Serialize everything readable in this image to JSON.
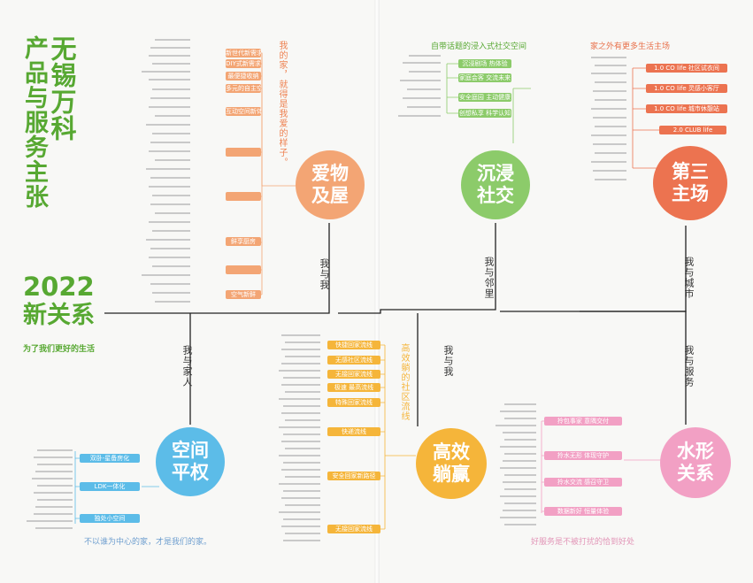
{
  "title": {
    "col1": "无锡万科",
    "col2": "产品与服务主张",
    "year": "2022",
    "subtitle": "新关系",
    "tagline": "为了我们更好的生活"
  },
  "branches": {
    "me_me_top": "我与我",
    "me_neighbors": "我与邻里",
    "me_city": "我与城市",
    "me_family": "我与家人",
    "me_me_bottom": "我与我",
    "me_service": "我与服务"
  },
  "circles": {
    "aiwu": "爱物\n及屋",
    "chenjin": "沉浸\n社交",
    "disan": "第三\n主场",
    "kongjian": "空间\n平权",
    "gaoxiao": "高效\n躺赢",
    "shuixing": "水形\n关系"
  },
  "colors": {
    "green": "#57a832",
    "orange": "#ee8252",
    "aiwu": "#f3a574",
    "chenjin": "#8ccb6a",
    "disan": "#ec7350",
    "kongjian": "#5cbce8",
    "gaoxiao": "#f5b53a",
    "shuixing": "#f2a0c4"
  },
  "aiwu": {
    "note": "我的家，就得是我爱的样子。",
    "tags": [
      "新世代新需求",
      "DIY式新需求",
      "最便捷收纳",
      "多元的自主空间",
      "互动空间新体验",
      "鲜享厨房",
      "空气新鲜"
    ]
  },
  "chenjin": {
    "caption": "自带话题的浸入式社交空间",
    "tags": [
      "沉浸剧场  热体验",
      "家庭会客  交流未来",
      "安全庭园  主动健康",
      "创想私享  科学认知"
    ]
  },
  "disan": {
    "caption": "家之外有更多生活主场",
    "tags": [
      "1.0 CO life 社区试衣间",
      "1.0 CO life 灵感小客厅",
      "1.0 CO life 城市休憩站",
      "2.0 CLUB life"
    ]
  },
  "kongjian": {
    "caption": "不以谁为中心的家，才是我们的家。",
    "tags": [
      "双卧-星备房化",
      "LDK一体化",
      "独处小空间"
    ]
  },
  "gaoxiao": {
    "note": "高效躺的社区流线",
    "tags": [
      "快捷回家流线",
      "无感社区流线",
      "无接回家流线",
      "极速  最高流线",
      "特殊回家流线",
      "快递流线",
      "安全回家新路径",
      "无接回家流线"
    ]
  },
  "shuixing": {
    "caption": "好服务是不被打扰的恰到好处",
    "tags": [
      "拎包事家  意隅交付",
      "拎水无形  体现守护",
      "拎水交流  感召守卫",
      "数据新好  恒量体验"
    ]
  }
}
